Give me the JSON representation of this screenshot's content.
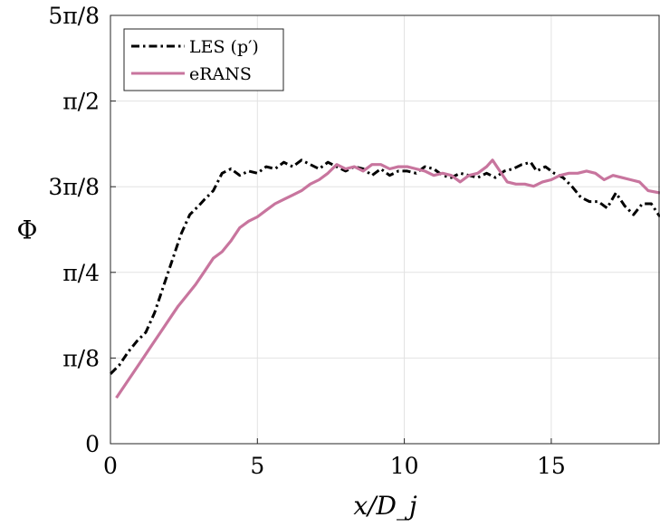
{
  "chart_data": {
    "type": "line",
    "xlabel": "x/D_j",
    "ylabel": "Φ",
    "xlim": [
      0,
      18.7
    ],
    "ylim": [
      0,
      1.9635
    ],
    "grid": true,
    "legend_position": "top-left",
    "x_ticks": [
      {
        "value": 0,
        "label": "0"
      },
      {
        "value": 5,
        "label": "5"
      },
      {
        "value": 10,
        "label": "10"
      },
      {
        "value": 15,
        "label": "15"
      }
    ],
    "y_ticks": [
      {
        "value": 0,
        "label": "0"
      },
      {
        "value": 0.3927,
        "label": "π/8"
      },
      {
        "value": 0.7854,
        "label": "π/4"
      },
      {
        "value": 1.1781,
        "label": "3π/8"
      },
      {
        "value": 1.5708,
        "label": "π/2"
      },
      {
        "value": 1.9635,
        "label": "5π/8"
      }
    ],
    "series": [
      {
        "name": "LES (p′)",
        "color": "#000000",
        "style": "dash-dot",
        "x": [
          0.0,
          0.3,
          0.6,
          0.9,
          1.2,
          1.5,
          1.8,
          2.1,
          2.4,
          2.7,
          3.0,
          3.2,
          3.5,
          3.8,
          4.1,
          4.4,
          4.7,
          5.0,
          5.3,
          5.6,
          5.9,
          6.2,
          6.5,
          6.8,
          7.1,
          7.4,
          7.7,
          8.0,
          8.3,
          8.6,
          8.9,
          9.2,
          9.5,
          9.8,
          10.1,
          10.4,
          10.7,
          11.0,
          11.3,
          11.6,
          11.9,
          12.2,
          12.5,
          12.8,
          13.1,
          13.4,
          13.7,
          14.0,
          14.3,
          14.5,
          14.8,
          15.1,
          15.4,
          15.7,
          16.0,
          16.3,
          16.6,
          16.9,
          17.2,
          17.5,
          17.8,
          18.1,
          18.4,
          18.7
        ],
        "values": [
          0.32,
          0.36,
          0.42,
          0.47,
          0.51,
          0.6,
          0.72,
          0.84,
          0.96,
          1.05,
          1.09,
          1.12,
          1.16,
          1.24,
          1.26,
          1.23,
          1.25,
          1.24,
          1.27,
          1.26,
          1.29,
          1.27,
          1.3,
          1.28,
          1.26,
          1.29,
          1.27,
          1.25,
          1.27,
          1.26,
          1.23,
          1.26,
          1.23,
          1.25,
          1.25,
          1.24,
          1.27,
          1.26,
          1.23,
          1.22,
          1.24,
          1.23,
          1.22,
          1.24,
          1.22,
          1.25,
          1.26,
          1.28,
          1.29,
          1.25,
          1.27,
          1.24,
          1.22,
          1.18,
          1.13,
          1.11,
          1.11,
          1.08,
          1.15,
          1.09,
          1.05,
          1.1,
          1.1,
          1.04
        ]
      },
      {
        "name": "eRANS",
        "color": "#c8759e",
        "style": "solid",
        "x": [
          0.2,
          0.5,
          0.8,
          1.1,
          1.4,
          1.7,
          2.0,
          2.3,
          2.6,
          2.9,
          3.2,
          3.5,
          3.8,
          4.1,
          4.4,
          4.7,
          5.0,
          5.3,
          5.6,
          5.9,
          6.2,
          6.5,
          6.8,
          7.1,
          7.4,
          7.7,
          8.0,
          8.3,
          8.6,
          8.9,
          9.2,
          9.5,
          9.8,
          10.1,
          10.4,
          10.7,
          11.0,
          11.3,
          11.6,
          11.9,
          12.2,
          12.5,
          12.8,
          13.0,
          13.2,
          13.5,
          13.8,
          14.1,
          14.4,
          14.7,
          15.0,
          15.3,
          15.6,
          15.9,
          16.2,
          16.5,
          16.8,
          17.1,
          17.4,
          17.7,
          18.0,
          18.3,
          18.7
        ],
        "values": [
          0.21,
          0.27,
          0.33,
          0.39,
          0.45,
          0.51,
          0.57,
          0.63,
          0.68,
          0.73,
          0.79,
          0.85,
          0.88,
          0.93,
          0.99,
          1.02,
          1.04,
          1.07,
          1.1,
          1.12,
          1.14,
          1.16,
          1.19,
          1.21,
          1.24,
          1.28,
          1.26,
          1.27,
          1.25,
          1.28,
          1.28,
          1.26,
          1.27,
          1.27,
          1.26,
          1.25,
          1.23,
          1.24,
          1.23,
          1.2,
          1.23,
          1.24,
          1.27,
          1.3,
          1.26,
          1.2,
          1.19,
          1.19,
          1.18,
          1.2,
          1.21,
          1.23,
          1.24,
          1.24,
          1.25,
          1.24,
          1.21,
          1.23,
          1.22,
          1.21,
          1.2,
          1.16,
          1.15
        ]
      }
    ]
  }
}
